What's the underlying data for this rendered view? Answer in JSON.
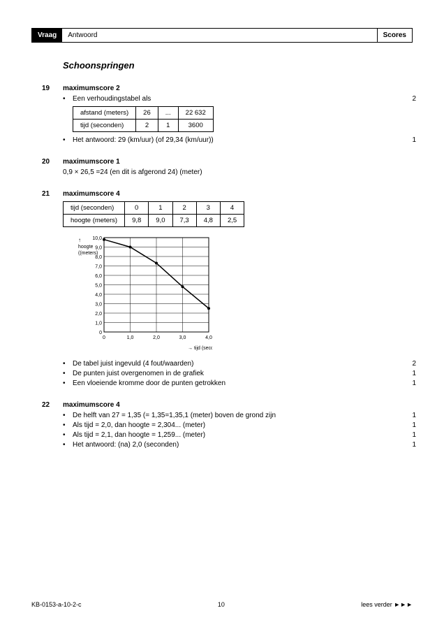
{
  "header": {
    "left": "Vraag",
    "mid": "Antwoord",
    "right": "Scores"
  },
  "section_title": "Schoonspringen",
  "q19": {
    "num": "19",
    "max": "maximumscore 2",
    "line1": "Een verhoudingstabel als",
    "score1": "2",
    "table": {
      "rows": [
        [
          "afstand (meters)",
          "26",
          "...",
          "22 632"
        ],
        [
          "tijd (seconden)",
          "2",
          "1",
          "3600"
        ]
      ]
    },
    "line2": "Het antwoord: 29 (km/uur) (of 29,34 (km/uur))",
    "score2": "1"
  },
  "q20": {
    "num": "20",
    "max": "maximumscore 1",
    "line1": "0,9 × 26,5 =24 (en dit is afgerond 24) (meter)"
  },
  "q21": {
    "num": "21",
    "max": "maximumscore 4",
    "table": {
      "header": [
        "tijd (seconden)",
        "0",
        "1",
        "2",
        "3",
        "4"
      ],
      "row": [
        "hoogte (meters)",
        "9,8",
        "9,0",
        "7,3",
        "4,8",
        "2,5"
      ]
    },
    "chart": {
      "ylabel": "hoogte (meters)",
      "xlabel": "tijd (seconden)",
      "yticks": [
        "10,0",
        "9,0",
        "8,0",
        "7,0",
        "6,0",
        "5,0",
        "4,0",
        "3,0",
        "2,0",
        "1,0",
        "0"
      ],
      "xticks": [
        "0",
        "1,0",
        "2,0",
        "3,0",
        "4,0"
      ],
      "points": [
        [
          0,
          9.8
        ],
        [
          1,
          9.0
        ],
        [
          2,
          7.3
        ],
        [
          3,
          4.8
        ],
        [
          4,
          2.5
        ]
      ],
      "ymax": 10,
      "xmax": 4,
      "grid_color": "#000",
      "line_color": "#000",
      "bg": "#fff"
    },
    "bullets": [
      {
        "txt": "De tabel juist ingevuld (4 fout/waarden)",
        "score": "2"
      },
      {
        "txt": "De punten juist overgenomen in de grafiek",
        "score": "1"
      },
      {
        "txt": "Een vloeiende kromme door de punten getrokken",
        "score": "1"
      }
    ]
  },
  "q22": {
    "num": "22",
    "max": "maximumscore 4",
    "bullets": [
      {
        "txt": "De helft van 27 = 1,35 (= 1,35=1,35,1 (meter) boven de grond zijn",
        "score": "1"
      },
      {
        "txt": "Als tijd = 2,0, dan hoogte = 2,304... (meter)",
        "score": "1"
      },
      {
        "txt": "Als tijd = 2,1, dan hoogte = 1,259... (meter)",
        "score": "1"
      },
      {
        "txt": "Het antwoord: (na) 2,0 (seconden)",
        "score": "1"
      }
    ]
  },
  "footer": {
    "left": "KB-0153-a-10-2-c",
    "mid": "10",
    "right": "lees verder ►►►"
  }
}
